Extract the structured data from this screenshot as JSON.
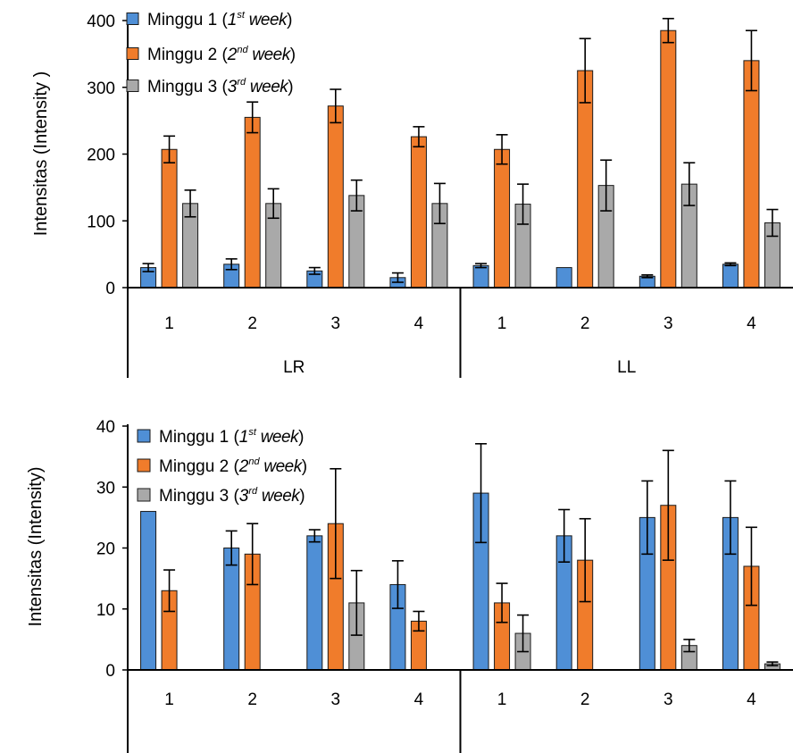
{
  "colors": {
    "week1": "#4f8fd6",
    "week2": "#f07c2b",
    "week3": "#a9a9a9",
    "axis": "#000000",
    "bar_edge": "#1a1a1a"
  },
  "chart_data": [
    {
      "type": "bar",
      "ylabel": "Intensitas (Intensity )",
      "ylim": [
        0,
        400
      ],
      "yticks": [
        "0",
        "100",
        "200",
        "300",
        "400"
      ],
      "grid": false,
      "legend_position": "top-left",
      "categories": [
        "1",
        "2",
        "3",
        "4",
        "1",
        "2",
        "3",
        "4"
      ],
      "groups": [
        {
          "label": "LR",
          "span": [
            0,
            3
          ]
        },
        {
          "label": "LL",
          "span": [
            4,
            7
          ]
        }
      ],
      "series": [
        {
          "name": "Minggu 1",
          "name_sub": {
            "pre": " (",
            "num": "1",
            "sup": "st",
            "post": " week",
            "end": ")"
          },
          "color_key": "week1",
          "values": [
            30,
            35,
            25,
            15,
            33,
            30,
            17,
            35
          ],
          "errors": [
            6,
            8,
            5,
            7,
            3,
            0,
            2,
            2
          ]
        },
        {
          "name": "Minggu 2",
          "name_sub": {
            "pre": " (",
            "num": "2",
            "sup": "nd",
            "post": " week",
            "end": ")"
          },
          "color_key": "week2",
          "values": [
            207,
            255,
            272,
            226,
            207,
            325,
            385,
            340
          ],
          "errors": [
            20,
            23,
            25,
            15,
            22,
            48,
            18,
            45
          ]
        },
        {
          "name": "Minggu 3",
          "name_sub": {
            "pre": " (",
            "num": "3",
            "sup": "rd",
            "post": " week",
            "end": ")"
          },
          "color_key": "week3",
          "values": [
            126,
            126,
            138,
            126,
            125,
            153,
            155,
            97
          ],
          "errors": [
            20,
            22,
            23,
            30,
            30,
            38,
            32,
            20
          ]
        }
      ]
    },
    {
      "type": "bar",
      "ylabel": "Intensitas (Intensity)",
      "ylim": [
        0,
        40
      ],
      "yticks": [
        "0",
        "10",
        "20",
        "30",
        "40"
      ],
      "grid": false,
      "legend_position": "top-left",
      "categories": [
        "1",
        "2",
        "3",
        "4",
        "1",
        "2",
        "3",
        "4"
      ],
      "groups": [
        {
          "label": "",
          "span": [
            0,
            3
          ]
        },
        {
          "label": "",
          "span": [
            4,
            7
          ]
        }
      ],
      "series": [
        {
          "name": "Minggu 1",
          "name_sub": {
            "pre": " (",
            "num": "1",
            "sup": "st",
            "post": " week",
            "end": ")"
          },
          "color_key": "week1",
          "values": [
            26,
            20,
            22,
            14,
            29,
            22,
            25,
            25
          ],
          "errors": [
            0,
            2.8,
            1,
            3.9,
            8.1,
            4.3,
            6,
            6
          ]
        },
        {
          "name": "Minggu 2",
          "name_sub": {
            "pre": " (",
            "num": "2",
            "sup": "nd",
            "post": " week",
            "end": ")"
          },
          "color_key": "week2",
          "values": [
            13,
            19,
            24,
            8,
            11,
            18,
            27,
            17
          ],
          "errors": [
            3.4,
            5,
            9,
            1.6,
            3.2,
            6.8,
            9,
            6.4
          ]
        },
        {
          "name": "Minggu 3",
          "name_sub": {
            "pre": " (",
            "num": "3",
            "sup": "rd",
            "post": " week",
            "end": ")"
          },
          "color_key": "week3",
          "values": [
            0,
            0,
            11,
            0,
            6,
            0,
            4,
            1
          ],
          "errors": [
            0,
            0,
            5.3,
            0,
            3,
            0,
            1,
            0.3
          ]
        }
      ]
    }
  ]
}
